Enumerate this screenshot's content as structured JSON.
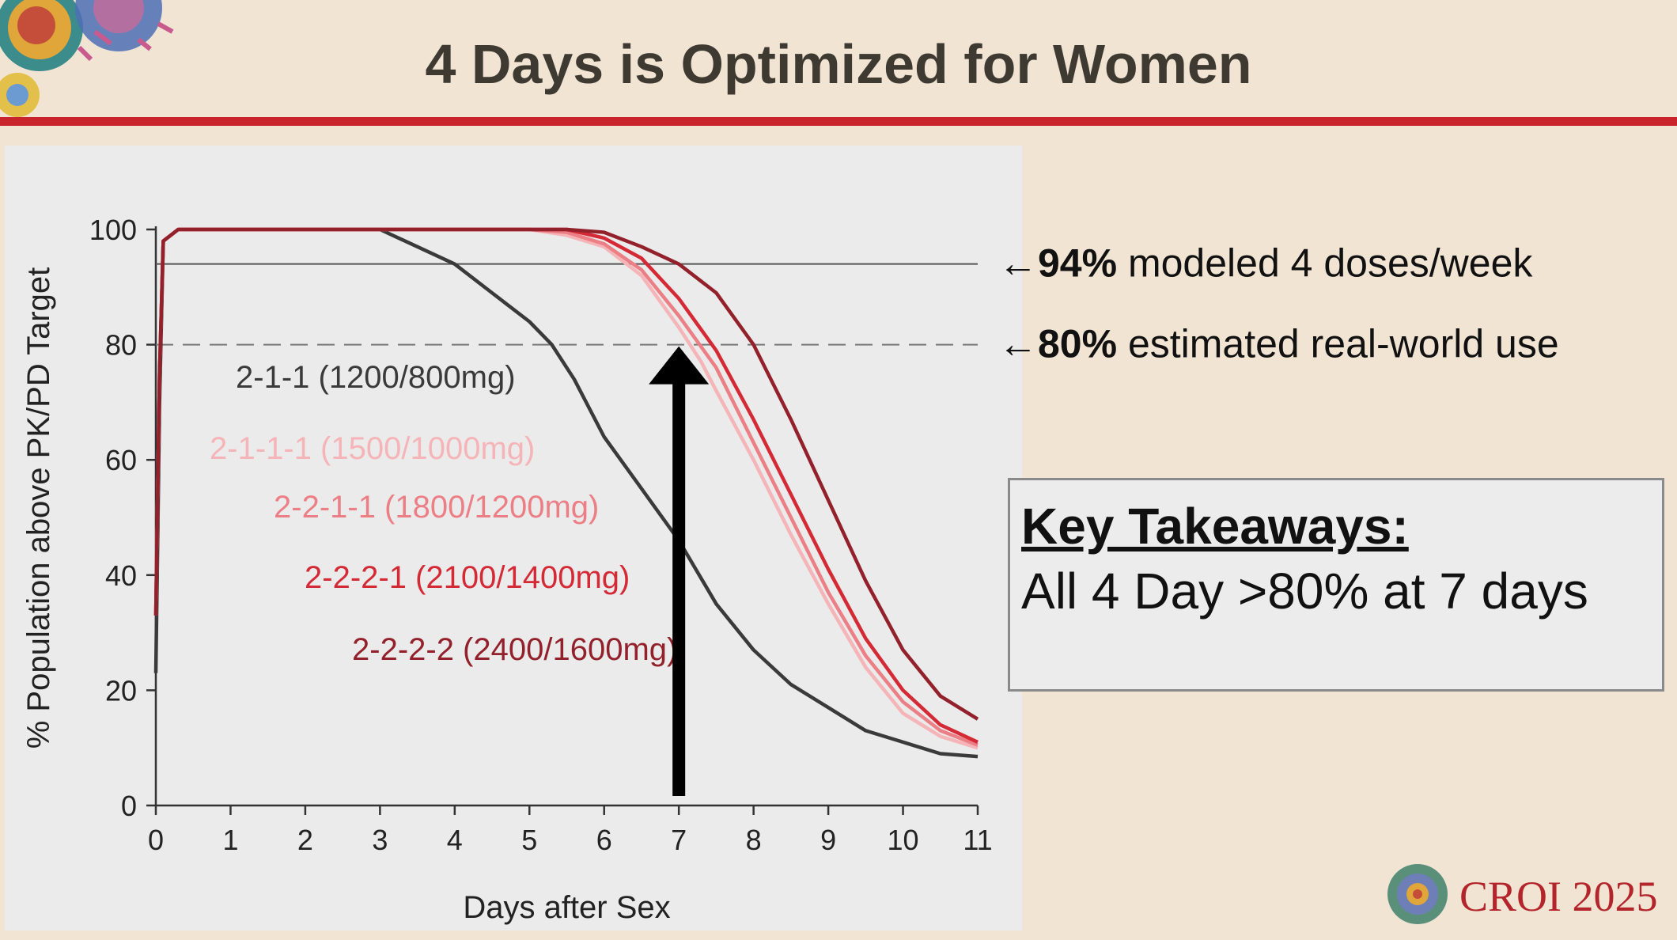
{
  "slide": {
    "title": "4 Days is Optimized for Women",
    "conference": "CROI 2025",
    "colors": {
      "background": "#f1e4d3",
      "title_rule": "#c9242b",
      "conference_text": "#b4252b"
    }
  },
  "takeaways": {
    "heading": "Key Takeaways:",
    "text": "All 4 Day >80% at 7 days"
  },
  "chart_data": {
    "type": "line",
    "xlabel": "Days after Sex",
    "ylabel": "% Population above PK/PD Target",
    "xlim": [
      0,
      11
    ],
    "ylim": [
      0,
      100
    ],
    "xticks": [
      "0",
      "1",
      "2",
      "3",
      "4",
      "5",
      "6",
      "7",
      "8",
      "9",
      "10",
      "11"
    ],
    "yticks": [
      "0",
      "20",
      "40",
      "60",
      "80",
      "100"
    ],
    "grid": false,
    "reference_lines": [
      {
        "y": 94,
        "style": "solid",
        "color": "#555555",
        "arrow": "←",
        "value_label": "94%",
        "label": "modeled 4 doses/week"
      },
      {
        "y": 80,
        "style": "dashed",
        "color": "#777777",
        "arrow": "←",
        "value_label": "80%",
        "label": "estimated real-world use"
      }
    ],
    "annotation_arrow": {
      "x": 7,
      "y_from": 0,
      "y_to": 80,
      "color": "#000000"
    },
    "series": [
      {
        "name": "2-1-1 (1200/800mg)",
        "color": "#3a3a3a",
        "x": [
          0,
          0.05,
          0.1,
          0.3,
          1,
          2,
          3,
          3.5,
          4,
          4.5,
          5,
          5.3,
          5.6,
          6,
          6.5,
          7,
          7.5,
          8,
          8.5,
          9,
          9.5,
          10,
          10.5,
          11
        ],
        "y": [
          23,
          70,
          98,
          100,
          100,
          100,
          100,
          97,
          94,
          89,
          84,
          80,
          74,
          64,
          55,
          46,
          35,
          27,
          21,
          17,
          13,
          11,
          9,
          8.5
        ]
      },
      {
        "name": "2-1-1-1 (1500/1000mg)",
        "color": "#f5b5b8",
        "x": [
          0,
          0.05,
          0.1,
          0.3,
          1,
          2,
          3,
          4,
          5,
          5.5,
          6,
          6.5,
          7,
          7.3,
          7.5,
          8,
          8.5,
          9,
          9.5,
          10,
          10.5,
          11
        ],
        "y": [
          33,
          75,
          98,
          100,
          100,
          100,
          100,
          100,
          100,
          99,
          97,
          92,
          83,
          77,
          72,
          60,
          47,
          35,
          24,
          16,
          12,
          10
        ]
      },
      {
        "name": "2-2-1-1 (1800/1200mg)",
        "color": "#ec7f86",
        "x": [
          0,
          0.05,
          0.1,
          0.3,
          1,
          2,
          3,
          4,
          5,
          5.5,
          6,
          6.5,
          7,
          7.5,
          8,
          8.5,
          9,
          9.5,
          10,
          10.5,
          11
        ],
        "y": [
          33,
          75,
          98,
          100,
          100,
          100,
          100,
          100,
          100,
          99.5,
          97.5,
          93,
          85,
          76,
          63,
          50,
          37,
          26,
          18,
          13,
          10.5
        ]
      },
      {
        "name": "2-2-2-1 (2100/1400mg)",
        "color": "#d42a36",
        "x": [
          0,
          0.05,
          0.1,
          0.3,
          1,
          2,
          3,
          4,
          5,
          5.5,
          6,
          6.5,
          7,
          7.5,
          8,
          8.5,
          9,
          9.5,
          10,
          10.5,
          11
        ],
        "y": [
          33,
          75,
          98,
          100,
          100,
          100,
          100,
          100,
          100,
          100,
          98.5,
          95,
          88,
          79,
          67,
          54,
          41,
          29,
          20,
          14,
          11
        ]
      },
      {
        "name": "2-2-2-2 (2400/1600mg)",
        "color": "#93212b",
        "x": [
          0,
          0.05,
          0.1,
          0.3,
          1,
          2,
          3,
          4,
          5,
          5.5,
          6,
          6.5,
          7,
          7.5,
          8,
          8.5,
          9,
          9.5,
          10,
          10.5,
          11
        ],
        "y": [
          33,
          75,
          98,
          100,
          100,
          100,
          100,
          100,
          100,
          100,
          99.5,
          97,
          94,
          89,
          80,
          67,
          53,
          39,
          27,
          19,
          15
        ]
      }
    ]
  }
}
